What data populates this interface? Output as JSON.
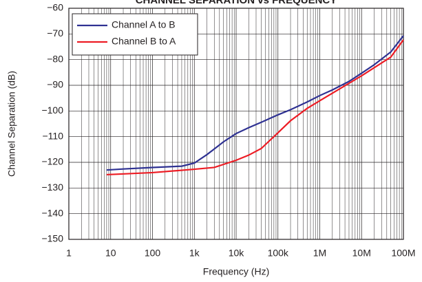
{
  "chart_data": {
    "type": "line",
    "title": "CHANNEL SEPARATION vs FREQUENCY",
    "xlabel": "Frequency (Hz)",
    "ylabel": "Channel Separation (dB)",
    "xscale": "log",
    "grid": true,
    "minor_grid": true,
    "legend": "upper left",
    "xlim": [
      1,
      100000000
    ],
    "ylim": [
      -150,
      -60
    ],
    "xticks": [
      {
        "value": 1,
        "label": "1"
      },
      {
        "value": 10,
        "label": "10"
      },
      {
        "value": 100,
        "label": "100"
      },
      {
        "value": 1000,
        "label": "1k"
      },
      {
        "value": 10000,
        "label": "10k"
      },
      {
        "value": 100000,
        "label": "100k"
      },
      {
        "value": 1000000,
        "label": "1M"
      },
      {
        "value": 10000000,
        "label": "10M"
      },
      {
        "value": 100000000,
        "label": "100M"
      }
    ],
    "yticks": [
      {
        "value": -60,
        "label": "−60"
      },
      {
        "value": -70,
        "label": "−70"
      },
      {
        "value": -80,
        "label": "−80"
      },
      {
        "value": -90,
        "label": "−90"
      },
      {
        "value": -100,
        "label": "−100"
      },
      {
        "value": -110,
        "label": "−110"
      },
      {
        "value": -120,
        "label": "−120"
      },
      {
        "value": -130,
        "label": "−130"
      },
      {
        "value": -140,
        "label": "−140"
      },
      {
        "value": -150,
        "label": "−150"
      }
    ],
    "series": [
      {
        "name": "Channel A to B",
        "color": "#2e3192",
        "x": [
          8,
          20,
          100,
          500,
          1000,
          2000,
          3000,
          5000,
          10000,
          20000,
          50000,
          100000,
          200000,
          500000,
          1000000,
          2000000,
          5000000,
          10000000,
          20000000,
          50000000,
          100000000
        ],
        "values": [
          -123,
          -122.6,
          -122,
          -121.5,
          -120.3,
          -117,
          -114.8,
          -112,
          -108.8,
          -106.5,
          -103.7,
          -101.5,
          -99.5,
          -96.5,
          -94,
          -91.8,
          -88.5,
          -85.3,
          -82,
          -77,
          -70.7
        ]
      },
      {
        "name": "Channel B to A",
        "color": "#ed1c24",
        "x": [
          8,
          100,
          1000,
          3000,
          10000,
          20000,
          40000,
          100000,
          200000,
          500000,
          1000000,
          10000000,
          50000000,
          100000000
        ],
        "values": [
          -124.8,
          -124,
          -122.7,
          -122,
          -119.2,
          -117.2,
          -114.6,
          -108.5,
          -103.8,
          -99,
          -96,
          -86.3,
          -79,
          -72.3
        ]
      }
    ]
  }
}
